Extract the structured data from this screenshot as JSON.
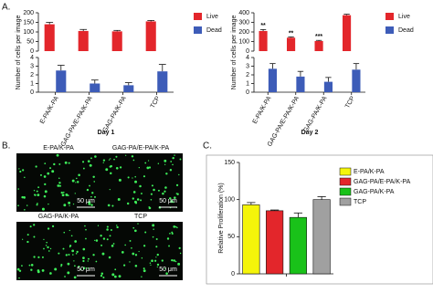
{
  "panel_labels": [
    "A.",
    "B.",
    "C."
  ],
  "chart_data": [
    {
      "type": "broken-bar",
      "xlabel": "Day 1",
      "ylabel": "Number of cells per image",
      "categories": [
        "E-PA/K-PA",
        "GAG-PA/E-PA/K-PA",
        "GAG-PA/K-PA",
        "TCP"
      ],
      "upper_ylim": [
        0,
        200
      ],
      "upper_yticks": [
        0,
        50,
        100,
        150,
        200
      ],
      "ylim": [
        0,
        4
      ],
      "yticks": [
        0,
        1,
        2,
        3,
        4
      ],
      "series": [
        {
          "name": "Live",
          "color": "#e3262b",
          "axis": "upper",
          "values": [
            140,
            105,
            103,
            155
          ],
          "errors": [
            10,
            8,
            5,
            5
          ]
        },
        {
          "name": "Dead",
          "color": "#3d5cb8",
          "axis": "lower",
          "values": [
            2.5,
            1.0,
            0.8,
            2.4
          ],
          "errors": [
            0.6,
            0.4,
            0.3,
            0.8
          ]
        }
      ]
    },
    {
      "type": "broken-bar",
      "xlabel": "Day 2",
      "ylabel": "Number of cells per image",
      "categories": [
        "E-PA/K-PA",
        "GAG-PA/E-PA/K-PA",
        "GAG-PA/K-PA",
        "TCP"
      ],
      "upper_ylim": [
        0,
        400
      ],
      "upper_yticks": [
        0,
        100,
        200,
        300,
        400
      ],
      "ylim": [
        0,
        4
      ],
      "yticks": [
        0,
        1,
        2,
        3,
        4
      ],
      "annotations": [
        "**",
        "**",
        "***",
        null
      ],
      "series": [
        {
          "name": "Live",
          "color": "#e3262b",
          "axis": "upper",
          "values": [
            210,
            140,
            105,
            375
          ],
          "errors": [
            15,
            8,
            7,
            10
          ]
        },
        {
          "name": "Dead",
          "color": "#3d5cb8",
          "axis": "lower",
          "values": [
            2.7,
            1.8,
            1.2,
            2.6
          ],
          "errors": [
            0.6,
            0.6,
            0.5,
            0.7
          ]
        }
      ]
    },
    {
      "type": "bar",
      "ylabel": "Relative Proliferation (%)",
      "categories": [
        "E-PA/K-PA",
        "GAG-PA/E-PA/K-PA",
        "GAG-PA/K-PA",
        "TCP"
      ],
      "colors": [
        "#f5f50a",
        "#e3262b",
        "#19c219",
        "#a0a0a0"
      ],
      "values": [
        93,
        85,
        76,
        100
      ],
      "errors": [
        3,
        1,
        6,
        4
      ],
      "ylim": [
        0,
        150
      ],
      "yticks": [
        0,
        50,
        100,
        150
      ]
    }
  ],
  "images": [
    {
      "label": "E-PA/K-PA",
      "scale": "50 μm"
    },
    {
      "label": "GAG-PA/E-PA/K-PA",
      "scale": "50 μm"
    },
    {
      "label": "GAG-PA/K-PA",
      "scale": "50 μm"
    },
    {
      "label": "TCP",
      "scale": "50 μm"
    }
  ]
}
